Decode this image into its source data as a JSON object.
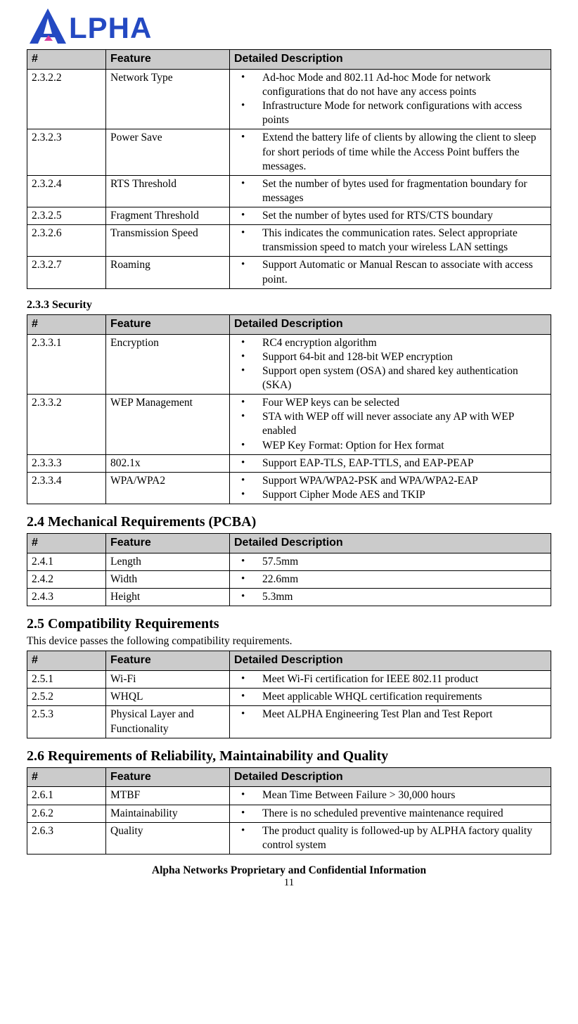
{
  "logo": {
    "text": "ALPHA",
    "color": "#2449c2",
    "accent": "#d93f9c"
  },
  "table1": {
    "headers": {
      "num": "#",
      "feature": "Feature",
      "desc": "Detailed Description"
    },
    "rows": [
      {
        "num": "2.3.2.2",
        "feature": "Network Type",
        "items": [
          "Ad-hoc Mode and 802.11 Ad-hoc Mode for network configurations that do not have any access points",
          "Infrastructure Mode for network configurations with access points"
        ]
      },
      {
        "num": "2.3.2.3",
        "feature": "Power Save",
        "items": [
          "Extend the battery life of clients by allowing the client to sleep for short periods of time while the Access Point buffers the messages."
        ]
      },
      {
        "num": "2.3.2.4",
        "feature": "RTS Threshold",
        "items": [
          "Set the number of bytes used for fragmentation boundary for messages"
        ]
      },
      {
        "num": "2.3.2.5",
        "feature": "Fragment Threshold",
        "items": [
          "Set the number of bytes used for RTS/CTS boundary"
        ]
      },
      {
        "num": "2.3.2.6",
        "feature": "Transmission Speed",
        "items": [
          "This indicates the communication rates. Select appropriate transmission speed to match your wireless LAN settings"
        ]
      },
      {
        "num": "2.3.2.7",
        "feature": "Roaming",
        "items": [
          "Support Automatic or Manual Rescan to associate with access point."
        ]
      }
    ]
  },
  "sec233_title": "2.3.3 Security",
  "table2": {
    "headers": {
      "num": "#",
      "feature": "Feature",
      "desc": "Detailed Description"
    },
    "rows": [
      {
        "num": "2.3.3.1",
        "feature": "Encryption",
        "items": [
          "RC4 encryption algorithm",
          "Support 64-bit and 128-bit WEP encryption",
          "Support open system (OSA) and shared key authentication (SKA)"
        ]
      },
      {
        "num": "2.3.3.2",
        "feature": "WEP Management",
        "items": [
          "Four WEP keys can be selected",
          "STA with WEP off will never associate any AP with WEP enabled",
          "WEP Key Format: Option for Hex format"
        ]
      },
      {
        "num": "2.3.3.3",
        "feature": "802.1x",
        "items": [
          "Support EAP-TLS, EAP-TTLS, and EAP-PEAP"
        ]
      },
      {
        "num": "2.3.3.4",
        "feature": "WPA/WPA2",
        "items": [
          "Support WPA/WPA2-PSK and WPA/WPA2-EAP",
          "Support Cipher Mode AES and TKIP"
        ]
      }
    ]
  },
  "sec24_title": "2.4 Mechanical Requirements (PCBA)",
  "table3": {
    "headers": {
      "num": "#",
      "feature": "Feature",
      "desc": "Detailed Description"
    },
    "rows": [
      {
        "num": "2.4.1",
        "feature": "Length",
        "items": [
          "57.5mm"
        ]
      },
      {
        "num": "2.4.2",
        "feature": "Width",
        "items": [
          "22.6mm"
        ]
      },
      {
        "num": "2.4.3",
        "feature": "Height",
        "items": [
          "5.3mm"
        ]
      }
    ]
  },
  "sec25_title": "2.5 Compatibility Requirements",
  "sec25_intro": "This device passes the following compatibility requirements.",
  "table4": {
    "headers": {
      "num": "#",
      "feature": "Feature",
      "desc": "Detailed Description"
    },
    "rows": [
      {
        "num": "2.5.1",
        "feature": "Wi-Fi",
        "items": [
          "Meet Wi-Fi certification for IEEE 802.11 product"
        ]
      },
      {
        "num": "2.5.2",
        "feature": "WHQL",
        "items": [
          "Meet applicable WHQL certification requirements"
        ]
      },
      {
        "num": "2.5.3",
        "feature": "Physical Layer and Functionality",
        "items": [
          "Meet ALPHA Engineering Test Plan and Test Report"
        ]
      }
    ]
  },
  "sec26_title": "2.6 Requirements of Reliability, Maintainability and Quality",
  "table5": {
    "headers": {
      "num": "#",
      "feature": "Feature",
      "desc": "Detailed Description"
    },
    "rows": [
      {
        "num": "2.6.1",
        "feature": "MTBF",
        "items": [
          "Mean Time Between Failure > 30,000 hours"
        ]
      },
      {
        "num": "2.6.2",
        "feature": "Maintainability",
        "items": [
          "There is no scheduled preventive maintenance required"
        ]
      },
      {
        "num": "2.6.3",
        "feature": "Quality",
        "items": [
          "The product quality is followed-up by ALPHA factory quality control system"
        ]
      }
    ]
  },
  "footer_text": "Alpha Networks Proprietary and Confidential Information",
  "page_number": "11"
}
